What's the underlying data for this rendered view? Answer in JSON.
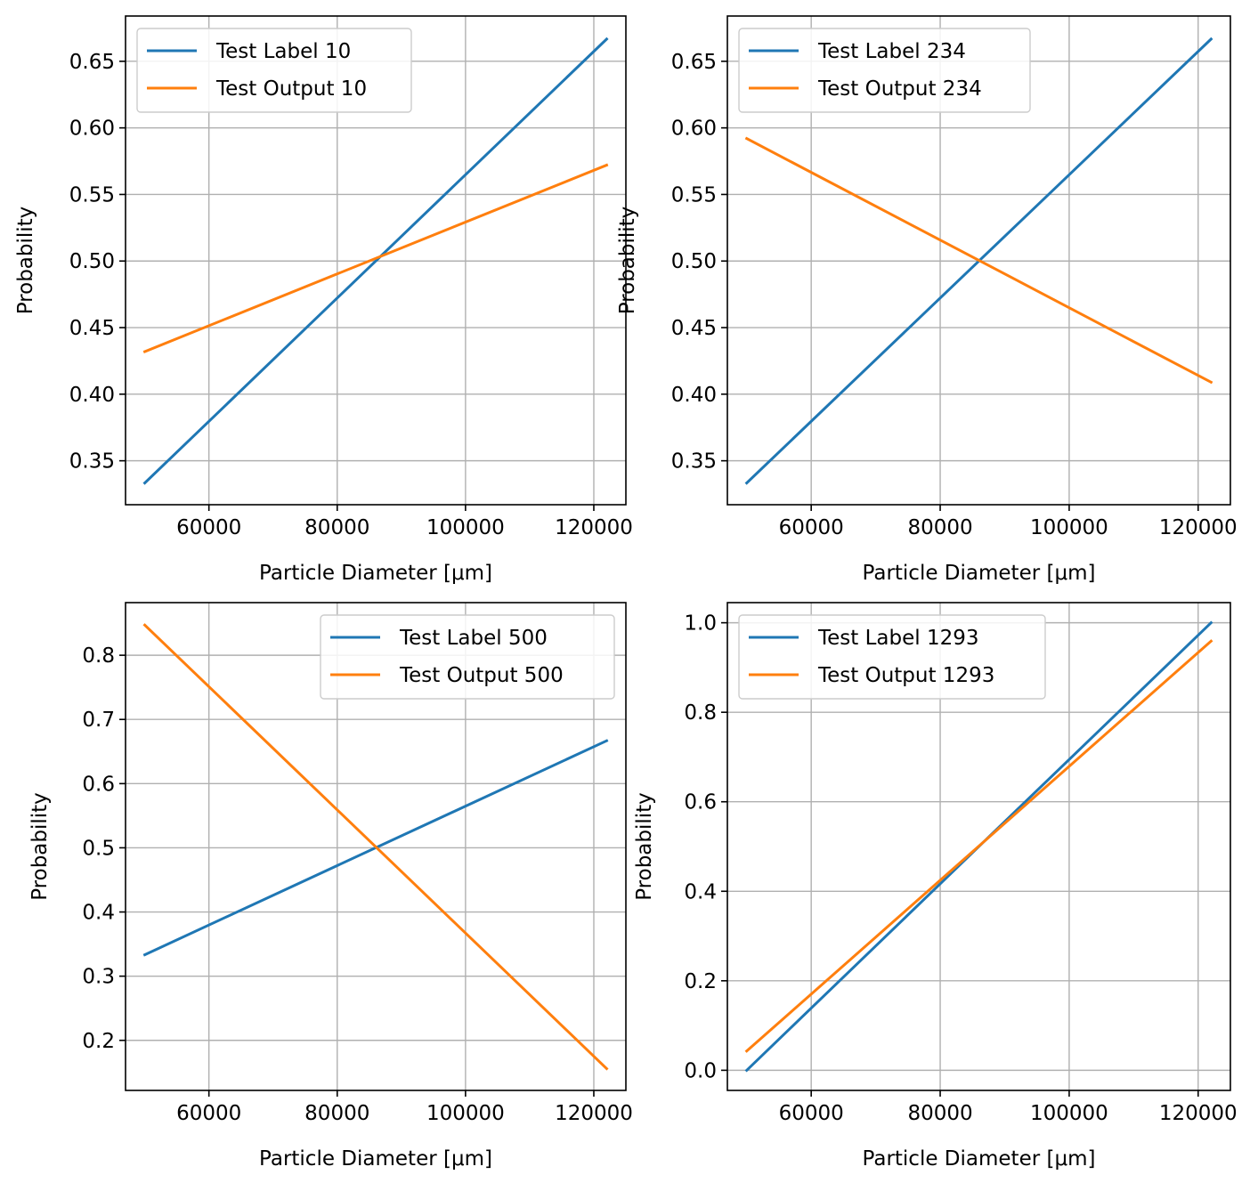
{
  "figure": {
    "background": "#ffffff",
    "grid_color": "#b0b0b0",
    "colors": {
      "label": "#1f77b4",
      "output": "#ff7f0e"
    }
  },
  "chart_data": [
    {
      "type": "line",
      "xlabel": "Particle Diameter [μm]",
      "ylabel": "Probability",
      "xlim": [
        47000,
        125000
      ],
      "ylim": [
        0.317,
        0.684
      ],
      "xticks": [
        60000,
        80000,
        100000,
        120000
      ],
      "xtick_labels": [
        "60000",
        "80000",
        "100000",
        "120000"
      ],
      "yticks": [
        0.35,
        0.4,
        0.45,
        0.5,
        0.55,
        0.6,
        0.65
      ],
      "ytick_labels": [
        "0.35",
        "0.40",
        "0.45",
        "0.50",
        "0.55",
        "0.60",
        "0.65"
      ],
      "grid": true,
      "legend_position": "upper left",
      "series": [
        {
          "name": "Test Label 10",
          "color": "#1f77b4",
          "x": [
            50000,
            122000
          ],
          "y": [
            0.3333,
            0.6667
          ]
        },
        {
          "name": "Test Output 10",
          "color": "#ff7f0e",
          "x": [
            50000,
            122000
          ],
          "y": [
            0.432,
            0.572
          ]
        }
      ]
    },
    {
      "type": "line",
      "xlabel": "Particle Diameter [μm]",
      "ylabel": "Probability",
      "xlim": [
        47000,
        125000
      ],
      "ylim": [
        0.317,
        0.684
      ],
      "xticks": [
        60000,
        80000,
        100000,
        120000
      ],
      "xtick_labels": [
        "60000",
        "80000",
        "100000",
        "120000"
      ],
      "yticks": [
        0.35,
        0.4,
        0.45,
        0.5,
        0.55,
        0.6,
        0.65
      ],
      "ytick_labels": [
        "0.35",
        "0.40",
        "0.45",
        "0.50",
        "0.55",
        "0.60",
        "0.65"
      ],
      "grid": true,
      "legend_position": "upper left",
      "series": [
        {
          "name": "Test Label 234",
          "color": "#1f77b4",
          "x": [
            50000,
            122000
          ],
          "y": [
            0.3333,
            0.6667
          ]
        },
        {
          "name": "Test Output 234",
          "color": "#ff7f0e",
          "x": [
            50000,
            122000
          ],
          "y": [
            0.592,
            0.409
          ]
        }
      ]
    },
    {
      "type": "line",
      "xlabel": "Particle Diameter [μm]",
      "ylabel": "Probability",
      "xlim": [
        47000,
        125000
      ],
      "ylim": [
        0.122,
        0.882
      ],
      "xticks": [
        60000,
        80000,
        100000,
        120000
      ],
      "xtick_labels": [
        "60000",
        "80000",
        "100000",
        "120000"
      ],
      "yticks": [
        0.2,
        0.3,
        0.4,
        0.5,
        0.6,
        0.7,
        0.8
      ],
      "ytick_labels": [
        "0.2",
        "0.3",
        "0.4",
        "0.5",
        "0.6",
        "0.7",
        "0.8"
      ],
      "grid": true,
      "legend_position": "upper right",
      "series": [
        {
          "name": "Test Label 500",
          "color": "#1f77b4",
          "x": [
            50000,
            122000
          ],
          "y": [
            0.3333,
            0.6667
          ]
        },
        {
          "name": "Test Output 500",
          "color": "#ff7f0e",
          "x": [
            50000,
            122000
          ],
          "y": [
            0.847,
            0.156
          ]
        }
      ]
    },
    {
      "type": "line",
      "xlabel": "Particle Diameter [μm]",
      "ylabel": "Probability",
      "xlim": [
        47000,
        125000
      ],
      "ylim": [
        -0.045,
        1.045
      ],
      "xticks": [
        60000,
        80000,
        100000,
        120000
      ],
      "xtick_labels": [
        "60000",
        "80000",
        "100000",
        "120000"
      ],
      "yticks": [
        0.0,
        0.2,
        0.4,
        0.6,
        0.8,
        1.0
      ],
      "ytick_labels": [
        "0.0",
        "0.2",
        "0.4",
        "0.6",
        "0.8",
        "1.0"
      ],
      "grid": true,
      "legend_position": "upper left",
      "series": [
        {
          "name": "Test Label 1293",
          "color": "#1f77b4",
          "x": [
            50000,
            122000
          ],
          "y": [
            0.0,
            1.0
          ]
        },
        {
          "name": "Test Output 1293",
          "color": "#ff7f0e",
          "x": [
            50000,
            122000
          ],
          "y": [
            0.043,
            0.959
          ]
        }
      ]
    }
  ]
}
